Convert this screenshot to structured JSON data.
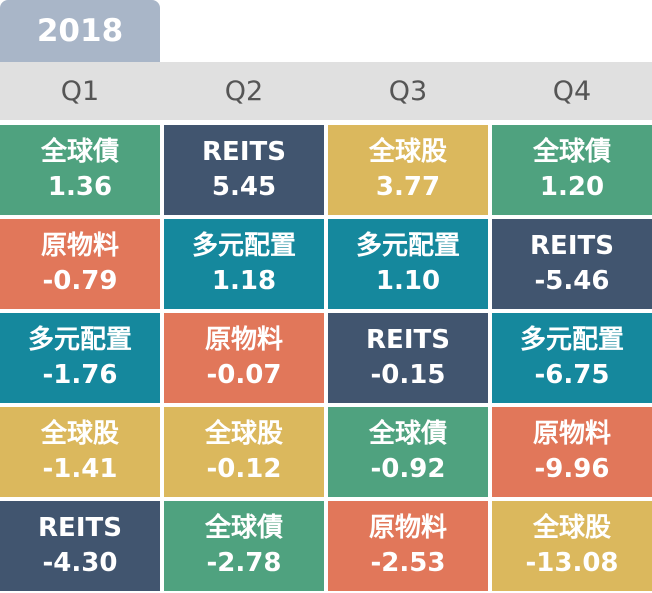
{
  "year": "2018",
  "quarters": [
    "Q1",
    "Q2",
    "Q3",
    "Q4"
  ],
  "colors": {
    "year_tab": "#a9b6c8",
    "header_bg": "#e0e0e0",
    "全球債": "#4fa27f",
    "REITS": "#41556f",
    "全球股": "#dbb85d",
    "原物料": "#e1775a",
    "多元配置": "#15889d"
  },
  "columns": [
    [
      {
        "label": "全球債",
        "value": "1.36"
      },
      {
        "label": "原物料",
        "value": "-0.79"
      },
      {
        "label": "多元配置",
        "value": "-1.76"
      },
      {
        "label": "全球股",
        "value": "-1.41"
      },
      {
        "label": "REITS",
        "value": "-4.30"
      }
    ],
    [
      {
        "label": "REITS",
        "value": "5.45"
      },
      {
        "label": "多元配置",
        "value": "1.18"
      },
      {
        "label": "原物料",
        "value": "-0.07"
      },
      {
        "label": "全球股",
        "value": "-0.12"
      },
      {
        "label": "全球債",
        "value": "-2.78"
      }
    ],
    [
      {
        "label": "全球股",
        "value": "3.77"
      },
      {
        "label": "多元配置",
        "value": "1.10"
      },
      {
        "label": "REITS",
        "value": "-0.15"
      },
      {
        "label": "全球債",
        "value": "-0.92"
      },
      {
        "label": "原物料",
        "value": "-2.53"
      }
    ],
    [
      {
        "label": "全球債",
        "value": "1.20"
      },
      {
        "label": "REITS",
        "value": "-5.46"
      },
      {
        "label": "多元配置",
        "value": "-6.75"
      },
      {
        "label": "原物料",
        "value": "-9.96"
      },
      {
        "label": "全球股",
        "value": "-13.08"
      }
    ]
  ]
}
